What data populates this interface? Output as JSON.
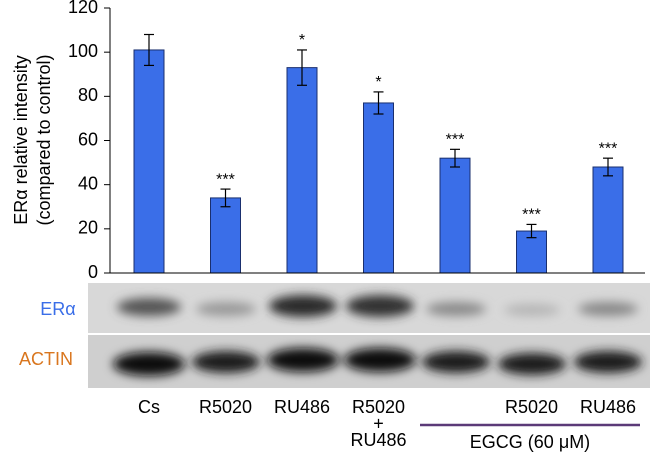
{
  "chart_data": {
    "type": "bar",
    "categories": [
      "Cs",
      "R5020",
      "RU486",
      "R5020 + RU486",
      null,
      "R5020",
      "RU486"
    ],
    "values": [
      101,
      34,
      93,
      77,
      52,
      19,
      48
    ],
    "errors": [
      7,
      4,
      8,
      5,
      4,
      3,
      4
    ],
    "annotations": [
      null,
      "***",
      "*",
      "*",
      "***",
      "***",
      "***"
    ],
    "color": "#3a6ee8",
    "ylim": [
      0,
      120
    ],
    "yticks": [
      0,
      20,
      40,
      60,
      80,
      100,
      120
    ],
    "y_label": [
      "ERα relative intensity",
      "(compared to control)"
    ],
    "blot_labels": [
      "ERα",
      "ACTIN"
    ],
    "group_label": "EGCG (60 μM)"
  }
}
